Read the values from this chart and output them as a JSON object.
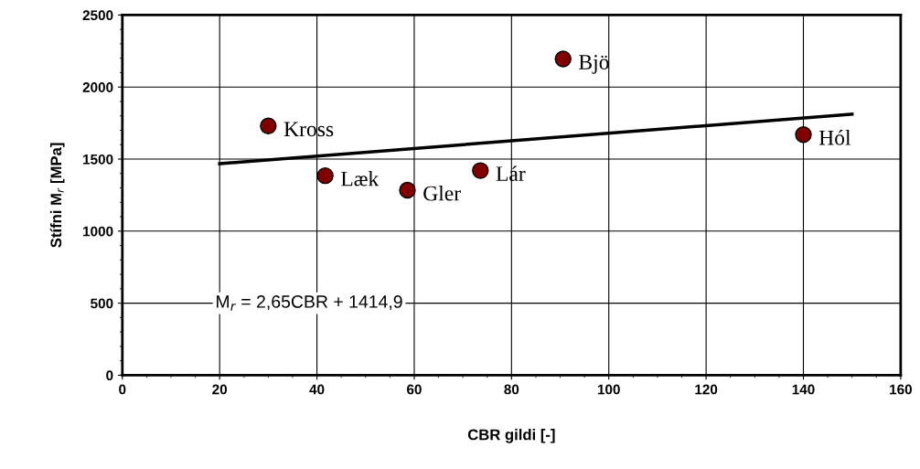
{
  "chart_data": {
    "type": "scatter",
    "xlabel": "CBR gildi [-]",
    "ylabel": "Stífni M$_{r}$ [MPa]",
    "x": [
      30,
      41.7,
      58.6,
      73.6,
      90.6,
      140
    ],
    "series": [
      {
        "color": "#800000",
        "values": [
          1730,
          1385,
          1284,
          1420,
          2195,
          1670
        ],
        "marker": "circle"
      },
      {
        "type": "line",
        "color": "#000000",
        "x": [
          20,
          150
        ],
        "values": [
          1468,
          1812
        ],
        "marker": "none",
        "line_style": "solid"
      }
    ],
    "xlim": [
      0,
      160
    ],
    "xticks": [
      0,
      20,
      40,
      60,
      80,
      100,
      120,
      140,
      160
    ],
    "ylim": [
      0,
      2500
    ],
    "yticks": [
      0,
      500,
      1000,
      1500,
      2000,
      2500
    ],
    "grid": true,
    "legend": false,
    "annotations": [
      {
        "text": "Kross",
        "x": 30,
        "y": 1730
      },
      {
        "text": "Læk",
        "x": 41.7,
        "y": 1385
      },
      {
        "text": "Gler",
        "x": 58.6,
        "y": 1284
      },
      {
        "text": "Lár",
        "x": 73.6,
        "y": 1420
      },
      {
        "text": "Bjö",
        "x": 90.6,
        "y": 2195
      },
      {
        "text": "Hól",
        "x": 140,
        "y": 1670
      },
      "M$_{r}$ = 2,65CBR + 1414,9"
    ]
  }
}
